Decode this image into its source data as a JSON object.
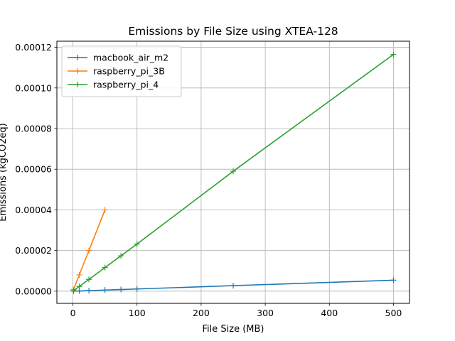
{
  "chart_data": {
    "type": "line",
    "title": "Emissions by File Size using XTEA-128",
    "xlabel": "File Size (MB)",
    "ylabel": "Emissions (kgCO2eq)",
    "xlim": [
      -25,
      525
    ],
    "ylim": [
      -6e-06,
      0.000123
    ],
    "x_ticks": [
      0,
      100,
      200,
      300,
      400,
      500
    ],
    "x_tick_labels": [
      "0",
      "100",
      "200",
      "300",
      "400",
      "500"
    ],
    "y_ticks": [
      0,
      2e-05,
      4e-05,
      6e-05,
      8e-05,
      0.0001,
      0.00012
    ],
    "y_tick_labels": [
      "0.00000",
      "0.00002",
      "0.00004",
      "0.00006",
      "0.00008",
      "0.00010",
      "0.00012"
    ],
    "grid": true,
    "legend_position": "top-left",
    "series": [
      {
        "name": "macbook_air_m2",
        "color": "#1f77b4",
        "marker": "plus",
        "x": [
          1,
          10,
          25,
          50,
          75,
          100,
          250,
          500
        ],
        "y": [
          1e-08,
          1e-07,
          2.7e-07,
          5.4e-07,
          8.1e-07,
          1.08e-06,
          2.7e-06,
          5.4e-06
        ]
      },
      {
        "name": "raspberry_pi_3B",
        "color": "#ff7f0e",
        "marker": "plus",
        "x": [
          1,
          10,
          25,
          50
        ],
        "y": [
          8e-07,
          8e-06,
          2e-05,
          4e-05
        ]
      },
      {
        "name": "raspberry_pi_4",
        "color": "#2ca02c",
        "marker": "plus",
        "x": [
          1,
          10,
          25,
          50,
          75,
          100,
          250,
          500
        ],
        "y": [
          2.3e-07,
          2.3e-06,
          5.8e-06,
          1.16e-05,
          1.74e-05,
          2.32e-05,
          5.9e-05,
          0.0001165
        ]
      }
    ]
  }
}
